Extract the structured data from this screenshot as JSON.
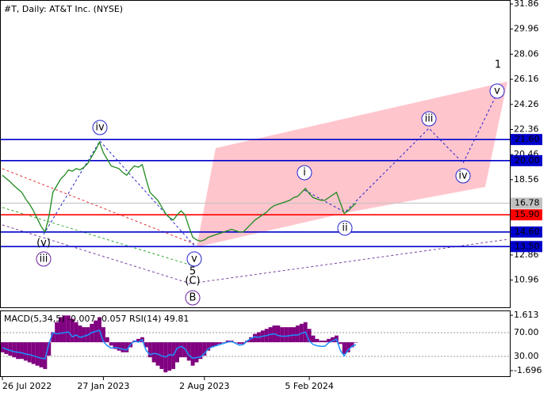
{
  "chart_data": [
    {
      "type": "line",
      "title": "#T, Daily:  AT&T Inc. (NYSE)",
      "color": "#1f8a1f",
      "categories": [
        "26 Jul 2022",
        null,
        null,
        null,
        null,
        null,
        null,
        null,
        null,
        null,
        null,
        null,
        null,
        null,
        null,
        null,
        null,
        null,
        null,
        null,
        null,
        null,
        null,
        null,
        null,
        null,
        "27 Jan 2023",
        null,
        null,
        null,
        null,
        null,
        null,
        null,
        null,
        null,
        null,
        null,
        null,
        null,
        null,
        null,
        null,
        null,
        null,
        null,
        null,
        null,
        null,
        null,
        null,
        null,
        "2 Aug 2023",
        null,
        null,
        null,
        null,
        null,
        null,
        null,
        null,
        null,
        null,
        null,
        null,
        null,
        null,
        null,
        null,
        null,
        null,
        null,
        null,
        null,
        null,
        null,
        null,
        null,
        null,
        "5 Feb 2024",
        null,
        null,
        null,
        null,
        null,
        null,
        null,
        null,
        null,
        null,
        null,
        null
      ],
      "values": [
        18.9,
        18.65,
        18.4,
        18.1,
        17.85,
        17.6,
        17.1,
        16.7,
        16.2,
        15.6,
        15.0,
        14.6,
        15.8,
        17.6,
        18.1,
        18.6,
        18.9,
        19.3,
        19.2,
        19.4,
        19.3,
        19.5,
        19.8,
        20.3,
        20.8,
        21.4,
        20.6,
        20.1,
        19.6,
        19.5,
        19.4,
        19.1,
        18.9,
        19.3,
        19.6,
        19.5,
        19.7,
        18.6,
        17.6,
        17.3,
        17.0,
        16.5,
        16.0,
        15.7,
        15.5,
        15.9,
        16.2,
        15.9,
        15.0,
        14.2,
        14.0,
        13.9,
        14.0,
        14.2,
        14.3,
        14.4,
        14.5,
        14.6,
        14.7,
        14.8,
        14.7,
        14.6,
        14.6,
        14.9,
        15.2,
        15.5,
        15.7,
        15.9,
        16.1,
        16.4,
        16.6,
        16.7,
        16.8,
        16.9,
        17.0,
        17.2,
        17.3,
        17.6,
        17.9,
        17.5,
        17.2,
        17.1,
        17.0,
        17.0,
        17.2,
        17.4,
        17.6,
        16.8,
        16.0,
        16.2,
        16.5,
        16.78
      ],
      "ylim": [
        8.9,
        32.16
      ],
      "yticks": [
        31.86,
        29.96,
        28.06,
        26.16,
        24.26,
        22.36,
        20.46,
        18.56,
        12.86,
        10.96
      ],
      "levels": [
        {
          "value": 21.6,
          "label": "21.60",
          "color": "#0000cc"
        },
        {
          "value": 20,
          "label": "20.00",
          "color": "#0000cc"
        },
        {
          "value": 16.78,
          "color": "#c0c0c0"
        },
        {
          "value": 15.9,
          "label": "15.90",
          "color": "#ff0000"
        },
        {
          "value": 14.6,
          "label": "14.60",
          "color": "#0000cc"
        },
        {
          "value": 13.5,
          "label": "13.50",
          "color": "#0000cc"
        }
      ],
      "annotations": [
        {
          "text": "1",
          "color": "#cc0000"
        },
        {
          "text": "v",
          "color": "#2222cc"
        },
        {
          "text": "iii",
          "color": "#2222cc"
        },
        {
          "text": "iv",
          "color": "#2222cc"
        },
        {
          "text": "i",
          "color": "#2222cc"
        },
        {
          "text": "ii",
          "color": "#2222cc"
        },
        {
          "text": "iv",
          "color": "#2222cc"
        },
        {
          "text": "v",
          "color": "#2222cc"
        },
        {
          "text": "(v)",
          "color": "#cc0000"
        },
        {
          "text": "iii",
          "color": "#6a1b9a"
        },
        {
          "text": "5",
          "color": "#cc0000"
        },
        {
          "text": "(C)",
          "color": "#1f8a1f"
        },
        {
          "text": "B",
          "color": "#6a1b9a"
        }
      ]
    },
    {
      "type": "macd",
      "title": "MACD(5,34,5) -0.007 -0.057 RSI(14) 49.81",
      "ylim": [
        -2.03,
        1.9
      ],
      "yticks": [
        1.613,
        -1.696
      ],
      "y2lim": [
        -3.3,
        107.3
      ],
      "y2ticks": [
        {
          "value": 70,
          "label": "70.00"
        },
        {
          "value": 30,
          "label": "30.00"
        }
      ],
      "series": [
        {
          "color": "#800080",
          "values": [
            -0.6,
            -0.7,
            -0.8,
            -0.9,
            -1.0,
            -1.0,
            -1.1,
            -1.2,
            -1.3,
            -1.4,
            -1.5,
            -1.6,
            -0.8,
            0.6,
            1.2,
            1.5,
            1.6,
            1.6,
            1.4,
            1.2,
            1.0,
            0.9,
            0.9,
            1.1,
            1.3,
            1.5,
            0.9,
            0.3,
            -0.2,
            -0.4,
            -0.5,
            -0.6,
            -0.6,
            -0.3,
            0.1,
            0.2,
            0.3,
            -0.3,
            -0.9,
            -1.2,
            -1.4,
            -1.6,
            -1.8,
            -1.7,
            -1.6,
            -1.2,
            -0.9,
            -0.9,
            -1.1,
            -1.4,
            -1.2,
            -1.0,
            -0.8,
            -0.5,
            -0.3,
            -0.2,
            -0.1,
            0.0,
            0.1,
            0.1,
            0.0,
            -0.1,
            -0.1,
            0.1,
            0.3,
            0.5,
            0.6,
            0.7,
            0.8,
            0.9,
            1.0,
            1.0,
            0.9,
            0.9,
            0.9,
            0.9,
            1.0,
            1.1,
            1.2,
            0.8,
            0.4,
            0.2,
            0.1,
            0.1,
            0.2,
            0.3,
            0.4,
            -0.1,
            -0.7,
            -0.6,
            -0.3,
            -0.007
          ]
        },
        {
          "color": "#1e90ff",
          "axis": "y2",
          "values": [
            45,
            42,
            40,
            38,
            37,
            36,
            34,
            33,
            31,
            29,
            27,
            26,
            52,
            70,
            68,
            69,
            70,
            71,
            63,
            66,
            62,
            64,
            66,
            70,
            72,
            74,
            55,
            48,
            44,
            45,
            44,
            42,
            41,
            50,
            56,
            54,
            58,
            40,
            33,
            35,
            34,
            31,
            29,
            33,
            32,
            44,
            47,
            43,
            32,
            27,
            28,
            29,
            35,
            43,
            46,
            48,
            50,
            52,
            54,
            55,
            52,
            49,
            50,
            56,
            60,
            63,
            62,
            64,
            65,
            67,
            68,
            65,
            64,
            64,
            65,
            66,
            66,
            69,
            71,
            56,
            50,
            48,
            47,
            47,
            53,
            56,
            59,
            40,
            31,
            41,
            47,
            49.81
          ]
        }
      ]
    }
  ]
}
